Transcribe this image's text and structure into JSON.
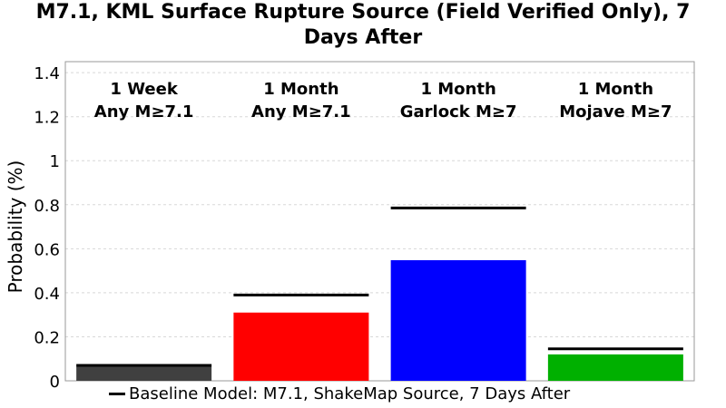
{
  "chart_data": {
    "type": "bar",
    "title_lines": [
      "M7.1, KML Surface Rupture Source (Field Verified Only), 7",
      "Days After"
    ],
    "ylabel": "Probability (%)",
    "xlabel": "",
    "ylim": [
      0,
      1.45
    ],
    "yticks": [
      "0",
      "0.2",
      "0.4",
      "0.6",
      "0.8",
      "1",
      "1.2",
      "1.4"
    ],
    "grid": true,
    "categories": [
      {
        "line1": "1 Week",
        "line2": "Any M≥7.1"
      },
      {
        "line1": "1 Month",
        "line2": "Any M≥7.1"
      },
      {
        "line1": "1 Month",
        "line2": "Garlock M≥7"
      },
      {
        "line1": "1 Month",
        "line2": "Mojave M≥7"
      }
    ],
    "values": [
      0.065,
      0.31,
      0.548,
      0.12
    ],
    "baseline_values": [
      0.07,
      0.39,
      0.785,
      0.145
    ],
    "colors": [
      "#404040",
      "#ff0000",
      "#0000ff",
      "#00b000"
    ],
    "legend": {
      "label": "Baseline Model: M7.1, ShakeMap Source, 7 Days After",
      "position": "bottom"
    }
  }
}
